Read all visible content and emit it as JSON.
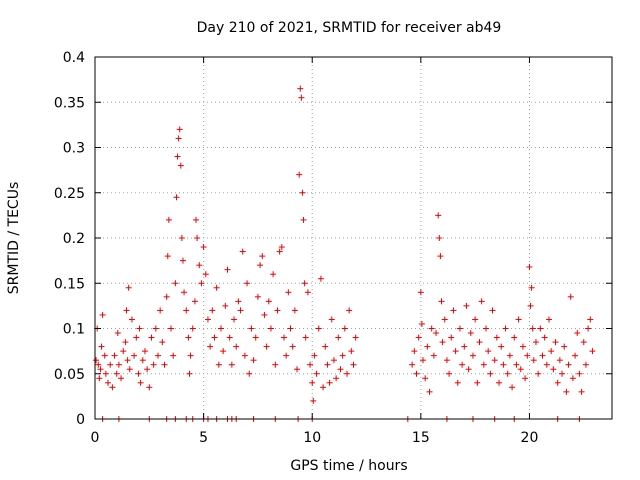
{
  "chart_data": {
    "type": "scatter",
    "title": "Day 210 of 2021, SRMTID for receiver ab49",
    "xlabel": "GPS time / hours",
    "ylabel": "SRMTID / TECUs",
    "xlim": [
      0,
      23.8
    ],
    "ylim": [
      0,
      0.4
    ],
    "grid": true,
    "marker": "+",
    "color": "#ee0000",
    "x_ticks": [
      0,
      5,
      10,
      15,
      20
    ],
    "x_tick_labels": [
      "0",
      "5",
      "10",
      "15",
      "20"
    ],
    "y_ticks": [
      0,
      0.05,
      0.1,
      0.15,
      0.2,
      0.25,
      0.3,
      0.35,
      0.4
    ],
    "y_tick_labels": [
      "0",
      "0.05",
      "0.1",
      "0.15",
      "0.2",
      "0.25",
      "0.3",
      "0.35",
      "0.4"
    ],
    "series": [
      {
        "name": "SRMTID",
        "points": [
          [
            0.05,
            0.065
          ],
          [
            0.1,
            0.1
          ],
          [
            0.15,
            0.06
          ],
          [
            0.2,
            0.045
          ],
          [
            0.25,
            0.055
          ],
          [
            0.3,
            0.08
          ],
          [
            0.35,
            0.115
          ],
          [
            0.45,
            0.07
          ],
          [
            0.5,
            0.05
          ],
          [
            0.6,
            0.04
          ],
          [
            0.7,
            0.06
          ],
          [
            0.8,
            0.035
          ],
          [
            0.9,
            0.07
          ],
          [
            1.0,
            0.05
          ],
          [
            1.05,
            0.095
          ],
          [
            1.1,
            0.06
          ],
          [
            1.2,
            0.045
          ],
          [
            1.3,
            0.075
          ],
          [
            1.4,
            0.085
          ],
          [
            1.45,
            0.12
          ],
          [
            1.5,
            0.065
          ],
          [
            1.55,
            0.145
          ],
          [
            1.6,
            0.055
          ],
          [
            1.7,
            0.11
          ],
          [
            1.8,
            0.07
          ],
          [
            1.9,
            0.09
          ],
          [
            2.0,
            0.05
          ],
          [
            2.05,
            0.1
          ],
          [
            2.1,
            0.04
          ],
          [
            2.2,
            0.065
          ],
          [
            2.3,
            0.075
          ],
          [
            2.4,
            0.055
          ],
          [
            2.5,
            0.035
          ],
          [
            2.6,
            0.09
          ],
          [
            2.7,
            0.06
          ],
          [
            2.8,
            0.1
          ],
          [
            2.9,
            0.07
          ],
          [
            3.0,
            0.12
          ],
          [
            3.1,
            0.085
          ],
          [
            3.2,
            0.06
          ],
          [
            3.3,
            0.135
          ],
          [
            3.35,
            0.18
          ],
          [
            3.4,
            0.22
          ],
          [
            3.5,
            0.1
          ],
          [
            3.6,
            0.07
          ],
          [
            3.7,
            0.15
          ],
          [
            3.75,
            0.245
          ],
          [
            3.8,
            0.29
          ],
          [
            3.85,
            0.31
          ],
          [
            3.9,
            0.32
          ],
          [
            3.95,
            0.28
          ],
          [
            4.0,
            0.2
          ],
          [
            4.05,
            0.175
          ],
          [
            4.1,
            0.14
          ],
          [
            4.2,
            0.12
          ],
          [
            4.3,
            0.09
          ],
          [
            4.35,
            0.05
          ],
          [
            4.4,
            0.07
          ],
          [
            4.5,
            0.1
          ],
          [
            4.6,
            0.13
          ],
          [
            4.65,
            0.22
          ],
          [
            4.7,
            0.2
          ],
          [
            4.8,
            0.17
          ],
          [
            4.9,
            0.15
          ],
          [
            5.0,
            0.19
          ],
          [
            5.1,
            0.16
          ],
          [
            5.2,
            0.11
          ],
          [
            5.3,
            0.08
          ],
          [
            5.4,
            0.12
          ],
          [
            5.5,
            0.09
          ],
          [
            5.6,
            0.145
          ],
          [
            5.7,
            0.06
          ],
          [
            5.8,
            0.1
          ],
          [
            5.9,
            0.075
          ],
          [
            6.0,
            0.125
          ],
          [
            6.1,
            0.165
          ],
          [
            6.2,
            0.09
          ],
          [
            6.3,
            0.06
          ],
          [
            6.4,
            0.11
          ],
          [
            6.5,
            0.08
          ],
          [
            6.6,
            0.13
          ],
          [
            6.7,
            0.12
          ],
          [
            6.8,
            0.185
          ],
          [
            6.9,
            0.07
          ],
          [
            7.0,
            0.15
          ],
          [
            7.1,
            0.05
          ],
          [
            7.2,
            0.1
          ],
          [
            7.3,
            0.065
          ],
          [
            7.4,
            0.09
          ],
          [
            7.5,
            0.135
          ],
          [
            7.6,
            0.17
          ],
          [
            7.7,
            0.18
          ],
          [
            7.8,
            0.115
          ],
          [
            7.9,
            0.08
          ],
          [
            8.0,
            0.13
          ],
          [
            8.1,
            0.1
          ],
          [
            8.2,
            0.16
          ],
          [
            8.3,
            0.06
          ],
          [
            8.4,
            0.12
          ],
          [
            8.5,
            0.185
          ],
          [
            8.6,
            0.19
          ],
          [
            8.7,
            0.09
          ],
          [
            8.8,
            0.07
          ],
          [
            8.9,
            0.14
          ],
          [
            9.0,
            0.1
          ],
          [
            9.1,
            0.08
          ],
          [
            9.2,
            0.12
          ],
          [
            9.3,
            0.055
          ],
          [
            9.4,
            0.27
          ],
          [
            9.45,
            0.365
          ],
          [
            9.5,
            0.355
          ],
          [
            9.55,
            0.25
          ],
          [
            9.6,
            0.22
          ],
          [
            9.65,
            0.15
          ],
          [
            9.7,
            0.09
          ],
          [
            9.8,
            0.14
          ],
          [
            9.9,
            0.06
          ],
          [
            10.0,
            0.04
          ],
          [
            10.05,
            0.02
          ],
          [
            10.1,
            0.07
          ],
          [
            10.2,
            0.05
          ],
          [
            10.3,
            0.1
          ],
          [
            10.4,
            0.155
          ],
          [
            10.5,
            0.035
          ],
          [
            10.6,
            0.08
          ],
          [
            10.7,
            0.06
          ],
          [
            10.8,
            0.04
          ],
          [
            10.9,
            0.11
          ],
          [
            11.0,
            0.065
          ],
          [
            11.1,
            0.045
          ],
          [
            11.2,
            0.09
          ],
          [
            11.3,
            0.055
          ],
          [
            11.4,
            0.07
          ],
          [
            11.5,
            0.1
          ],
          [
            11.6,
            0.05
          ],
          [
            11.7,
            0.12
          ],
          [
            11.8,
            0.075
          ],
          [
            11.9,
            0.06
          ],
          [
            12.0,
            0.09
          ],
          [
            14.6,
            0.06
          ],
          [
            14.7,
            0.075
          ],
          [
            14.8,
            0.05
          ],
          [
            14.9,
            0.09
          ],
          [
            15.0,
            0.14
          ],
          [
            15.05,
            0.105
          ],
          [
            15.1,
            0.065
          ],
          [
            15.2,
            0.045
          ],
          [
            15.3,
            0.08
          ],
          [
            15.4,
            0.03
          ],
          [
            15.5,
            0.1
          ],
          [
            15.6,
            0.07
          ],
          [
            15.7,
            0.095
          ],
          [
            15.8,
            0.225
          ],
          [
            15.85,
            0.2
          ],
          [
            15.9,
            0.18
          ],
          [
            15.95,
            0.13
          ],
          [
            16.0,
            0.085
          ],
          [
            16.1,
            0.11
          ],
          [
            16.2,
            0.065
          ],
          [
            16.3,
            0.05
          ],
          [
            16.4,
            0.09
          ],
          [
            16.5,
            0.12
          ],
          [
            16.6,
            0.075
          ],
          [
            16.7,
            0.04
          ],
          [
            16.8,
            0.1
          ],
          [
            16.9,
            0.06
          ],
          [
            17.0,
            0.08
          ],
          [
            17.1,
            0.125
          ],
          [
            17.2,
            0.055
          ],
          [
            17.3,
            0.095
          ],
          [
            17.4,
            0.07
          ],
          [
            17.5,
            0.11
          ],
          [
            17.6,
            0.04
          ],
          [
            17.7,
            0.085
          ],
          [
            17.8,
            0.13
          ],
          [
            17.9,
            0.06
          ],
          [
            18.0,
            0.1
          ],
          [
            18.1,
            0.075
          ],
          [
            18.2,
            0.05
          ],
          [
            18.3,
            0.12
          ],
          [
            18.4,
            0.065
          ],
          [
            18.5,
            0.09
          ],
          [
            18.6,
            0.04
          ],
          [
            18.7,
            0.08
          ],
          [
            18.8,
            0.06
          ],
          [
            18.9,
            0.1
          ],
          [
            19.0,
            0.05
          ],
          [
            19.1,
            0.07
          ],
          [
            19.2,
            0.035
          ],
          [
            19.3,
            0.09
          ],
          [
            19.4,
            0.06
          ],
          [
            19.5,
            0.11
          ],
          [
            19.6,
            0.055
          ],
          [
            19.7,
            0.08
          ],
          [
            19.8,
            0.045
          ],
          [
            19.9,
            0.07
          ],
          [
            20.0,
            0.168
          ],
          [
            20.05,
            0.125
          ],
          [
            20.1,
            0.145
          ],
          [
            20.15,
            0.1
          ],
          [
            20.2,
            0.065
          ],
          [
            20.3,
            0.085
          ],
          [
            20.4,
            0.05
          ],
          [
            20.5,
            0.1
          ],
          [
            20.6,
            0.07
          ],
          [
            20.7,
            0.09
          ],
          [
            20.8,
            0.06
          ],
          [
            20.9,
            0.11
          ],
          [
            21.0,
            0.075
          ],
          [
            21.1,
            0.055
          ],
          [
            21.2,
            0.085
          ],
          [
            21.3,
            0.04
          ],
          [
            21.4,
            0.065
          ],
          [
            21.5,
            0.05
          ],
          [
            21.6,
            0.08
          ],
          [
            21.7,
            0.03
          ],
          [
            21.8,
            0.06
          ],
          [
            21.9,
            0.135
          ],
          [
            22.0,
            0.045
          ],
          [
            22.1,
            0.07
          ],
          [
            22.2,
            0.095
          ],
          [
            22.3,
            0.05
          ],
          [
            22.4,
            0.03
          ],
          [
            22.5,
            0.085
          ],
          [
            22.6,
            0.06
          ],
          [
            22.7,
            0.1
          ],
          [
            22.8,
            0.11
          ],
          [
            22.9,
            0.075
          ],
          [
            0.35,
            0.0
          ],
          [
            1.1,
            0.0
          ],
          [
            2.5,
            0.0
          ],
          [
            3.3,
            0.0
          ],
          [
            3.7,
            0.0
          ],
          [
            4.2,
            0.0
          ],
          [
            4.5,
            0.0
          ],
          [
            5.0,
            0.0
          ],
          [
            5.2,
            0.0
          ],
          [
            5.6,
            0.0
          ],
          [
            6.1,
            0.0
          ],
          [
            6.3,
            0.0
          ],
          [
            6.5,
            0.0
          ],
          [
            7.3,
            0.0
          ],
          [
            8.3,
            0.0
          ],
          [
            9.35,
            0.0
          ],
          [
            10.0,
            0.0
          ],
          [
            14.4,
            0.0
          ],
          [
            16.2,
            0.0
          ],
          [
            17.4,
            0.0
          ],
          [
            18.4,
            0.0
          ],
          [
            19.3,
            0.0
          ],
          [
            21.3,
            0.0
          ],
          [
            22.3,
            0.0
          ]
        ]
      }
    ]
  }
}
